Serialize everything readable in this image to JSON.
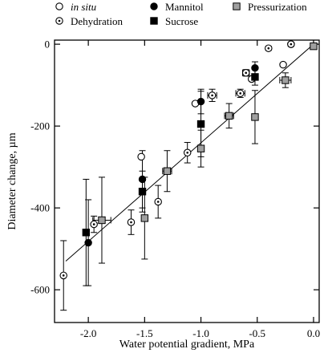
{
  "chart_data": {
    "type": "scatter",
    "xlabel": "Water potential gradient, MPa",
    "ylabel": "Diameter change, µm",
    "xlim": [
      -2.3,
      0.05
    ],
    "ylim": [
      -680,
      10
    ],
    "x_ticks": [
      -2.0,
      -1.5,
      -1.0,
      -0.5,
      0.0
    ],
    "x_tick_labels": [
      "-2.0",
      "-1.5",
      "-1.0",
      "-0.5",
      "0.0"
    ],
    "y_ticks": [
      -600,
      -400,
      -200,
      0
    ],
    "y_tick_labels": [
      "-600",
      "-400",
      "-200",
      "0"
    ],
    "grid": false,
    "legend_position": "top",
    "regression_line": {
      "x": [
        -2.2,
        0.0
      ],
      "y": [
        -530,
        0
      ]
    },
    "series": [
      {
        "name": "in situ",
        "marker": "open-circle",
        "points": [
          {
            "x": -1.53,
            "y": -275,
            "err": 0
          },
          {
            "x": -1.05,
            "y": -145,
            "err": 0
          },
          {
            "x": -0.55,
            "y": -85,
            "err": 0
          },
          {
            "x": -0.27,
            "y": -50,
            "err": 0
          },
          {
            "x": -0.2,
            "y": 0,
            "err": 0
          }
        ]
      },
      {
        "name": "Dehydration",
        "marker": "dotted-circle",
        "points": [
          {
            "x": -2.22,
            "y": -565,
            "err": 85,
            "xerr": 0
          },
          {
            "x": -1.95,
            "y": -440,
            "err": 20,
            "xerr": 0
          },
          {
            "x": -1.62,
            "y": -435,
            "err": 30,
            "xerr": 0
          },
          {
            "x": -1.38,
            "y": -385,
            "err": 40,
            "xerr": 0
          },
          {
            "x": -1.12,
            "y": -265,
            "err": 25,
            "xerr": 0
          },
          {
            "x": -0.9,
            "y": -125,
            "err": 15,
            "xerr": 0.04
          },
          {
            "x": -0.65,
            "y": -120,
            "err": 10,
            "xerr": 0.04
          },
          {
            "x": -0.6,
            "y": -70,
            "err": 8,
            "xerr": 0.03
          },
          {
            "x": -0.4,
            "y": -10,
            "err": 5,
            "xerr": 0
          },
          {
            "x": -0.2,
            "y": 0,
            "err": 5,
            "xerr": 0
          }
        ]
      },
      {
        "name": "Mannitol",
        "marker": "filled-circle",
        "points": [
          {
            "x": -2.0,
            "y": -485,
            "err": 105
          },
          {
            "x": -1.52,
            "y": -330,
            "err": 70
          },
          {
            "x": -1.0,
            "y": -140,
            "err": 30
          },
          {
            "x": -0.52,
            "y": -58,
            "err": 15
          }
        ]
      },
      {
        "name": "Sucrose",
        "marker": "filled-square",
        "points": [
          {
            "x": -2.02,
            "y": -460,
            "err": 130
          },
          {
            "x": -1.52,
            "y": -360,
            "err": 50
          },
          {
            "x": -1.0,
            "y": -195,
            "err": 80
          },
          {
            "x": -0.52,
            "y": -80,
            "err": 20
          }
        ]
      },
      {
        "name": "Pressurization",
        "marker": "gray-square",
        "points": [
          {
            "x": -1.88,
            "y": -430,
            "err": 105,
            "xerr": 0.08
          },
          {
            "x": -1.5,
            "y": -425,
            "err": 100,
            "xerr": 0
          },
          {
            "x": -1.3,
            "y": -310,
            "err": 50,
            "xerr": 0.04
          },
          {
            "x": -1.0,
            "y": -255,
            "err": 45,
            "xerr": 0
          },
          {
            "x": -0.75,
            "y": -175,
            "err": 30,
            "xerr": 0.04
          },
          {
            "x": -0.52,
            "y": -178,
            "err": 65,
            "xerr": 0
          },
          {
            "x": -0.25,
            "y": -88,
            "err": 18,
            "xerr": 0.05
          },
          {
            "x": 0.0,
            "y": -5,
            "err": 0,
            "xerr": 0
          }
        ]
      }
    ]
  }
}
